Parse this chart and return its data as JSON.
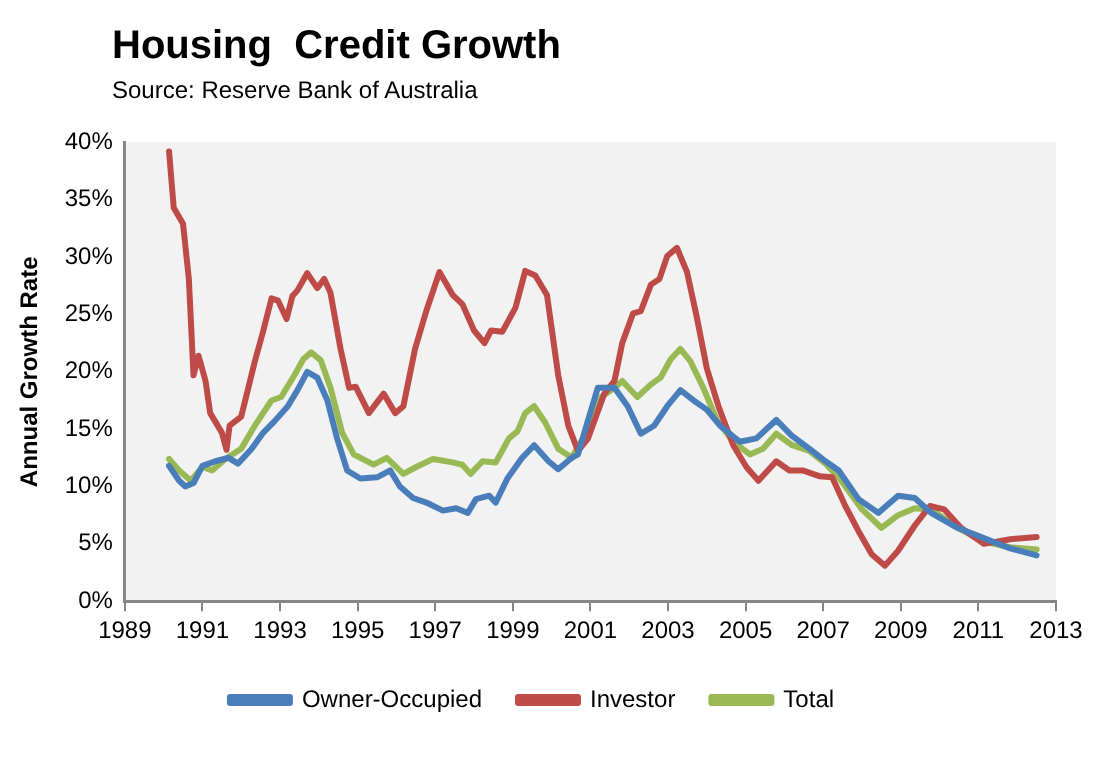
{
  "chart_data": {
    "type": "line",
    "title": "Housing  Credit Growth",
    "annotations": [
      "Source: Reserve Bank of Australia"
    ],
    "ylabel": "Annual Growth Rate",
    "xlim": [
      1989,
      2013
    ],
    "xticks": [
      1989,
      1991,
      1993,
      1995,
      1997,
      1999,
      2001,
      2003,
      2005,
      2007,
      2009,
      2011,
      2013
    ],
    "ylim": [
      0,
      40
    ],
    "yticks": [
      {
        "value": 0,
        "label": "0%"
      },
      {
        "value": 5,
        "label": "5%"
      },
      {
        "value": 10,
        "label": "10%"
      },
      {
        "value": 15,
        "label": "15%"
      },
      {
        "value": 20,
        "label": "20%"
      },
      {
        "value": 25,
        "label": "25%"
      },
      {
        "value": 30,
        "label": "30%"
      },
      {
        "value": 35,
        "label": "35%"
      },
      {
        "value": 40,
        "label": "40%"
      }
    ],
    "grid": false,
    "legend": "bottom",
    "marker": "none",
    "line_style": "solid",
    "series": [
      {
        "name": "Owner-Occupied",
        "color": "#4a7ebb",
        "x": [
          1990.14,
          1990.4,
          1990.56,
          1990.77,
          1991.0,
          1991.33,
          1991.67,
          1991.92,
          1992.27,
          1992.57,
          1992.86,
          1993.2,
          1993.45,
          1993.7,
          1993.96,
          1994.22,
          1994.47,
          1994.73,
          1995.07,
          1995.5,
          1995.84,
          1996.09,
          1996.43,
          1996.77,
          1997.2,
          1997.54,
          1997.84,
          1998.05,
          1998.39,
          1998.56,
          1998.86,
          1999.24,
          1999.55,
          1999.92,
          2000.17,
          2000.52,
          2000.68,
          2000.94,
          2001.19,
          2001.62,
          2001.96,
          2002.3,
          2002.64,
          2002.98,
          2003.32,
          2003.66,
          2004.0,
          2004.34,
          2004.85,
          2005.28,
          2005.79,
          2006.2,
          2006.64,
          2007.06,
          2007.4,
          2007.91,
          2008.42,
          2008.93,
          2009.36,
          2009.78,
          2010.46,
          2011.14,
          2011.82,
          2012.5
        ],
        "values": [
          11.8,
          10.5,
          10.0,
          10.3,
          11.8,
          12.2,
          12.5,
          12.0,
          13.3,
          14.7,
          15.7,
          17.0,
          18.4,
          20.0,
          19.5,
          17.5,
          14.2,
          11.4,
          10.7,
          10.8,
          11.4,
          10.0,
          9.0,
          8.6,
          7.9,
          8.1,
          7.7,
          8.9,
          9.2,
          8.6,
          10.7,
          12.5,
          13.6,
          12.2,
          11.5,
          12.5,
          12.8,
          15.8,
          18.6,
          18.6,
          17.0,
          14.6,
          15.3,
          17.0,
          18.4,
          17.5,
          16.7,
          15.3,
          13.9,
          14.2,
          15.8,
          14.4,
          13.3,
          12.2,
          11.4,
          8.9,
          7.7,
          9.2,
          9.0,
          7.7,
          6.4,
          5.5,
          4.6,
          4.0
        ]
      },
      {
        "name": "Investor",
        "color": "#be4b48",
        "x": [
          1990.14,
          1990.26,
          1990.5,
          1990.65,
          1990.77,
          1990.9,
          1991.08,
          1991.2,
          1991.5,
          1991.62,
          1991.7,
          1992.0,
          1992.35,
          1992.57,
          1992.78,
          1992.95,
          1993.17,
          1993.32,
          1993.45,
          1993.7,
          1993.96,
          1994.14,
          1994.3,
          1994.56,
          1994.78,
          1994.95,
          1995.29,
          1995.67,
          1995.97,
          1996.18,
          1996.48,
          1996.77,
          1997.11,
          1997.45,
          1997.7,
          1998.0,
          1998.27,
          1998.44,
          1998.73,
          1999.07,
          1999.32,
          1999.58,
          1999.88,
          2000.17,
          2000.43,
          2000.68,
          2000.94,
          2001.36,
          2001.62,
          2001.82,
          2002.1,
          2002.3,
          2002.56,
          2002.78,
          2002.98,
          2003.23,
          2003.49,
          2003.74,
          2004.0,
          2004.3,
          2004.68,
          2005.02,
          2005.33,
          2005.79,
          2006.13,
          2006.47,
          2006.9,
          2007.23,
          2007.57,
          2007.91,
          2008.25,
          2008.59,
          2008.93,
          2009.36,
          2009.75,
          2010.12,
          2010.55,
          2011.14,
          2011.82,
          2012.5
        ],
        "values": [
          39.2,
          34.3,
          32.9,
          28.1,
          19.7,
          21.4,
          19.2,
          16.4,
          14.7,
          13.2,
          15.3,
          16.1,
          20.9,
          23.6,
          26.4,
          26.2,
          24.6,
          26.6,
          27.1,
          28.6,
          27.3,
          28.1,
          26.9,
          22.0,
          18.6,
          18.7,
          16.4,
          18.1,
          16.4,
          17.0,
          22.0,
          25.3,
          28.7,
          26.7,
          25.9,
          23.6,
          22.5,
          23.6,
          23.5,
          25.6,
          28.8,
          28.4,
          26.7,
          19.7,
          15.3,
          13.1,
          14.2,
          18.1,
          19.2,
          22.5,
          25.1,
          25.3,
          27.6,
          28.1,
          30.1,
          30.8,
          28.7,
          24.8,
          20.3,
          17.0,
          13.6,
          11.7,
          10.5,
          12.2,
          11.4,
          11.4,
          10.9,
          10.8,
          8.3,
          6.1,
          4.1,
          3.1,
          4.4,
          6.6,
          8.3,
          8.0,
          6.4,
          5.0,
          5.4,
          5.6
        ]
      },
      {
        "name": "Total",
        "color": "#98b954",
        "x": [
          1990.14,
          1990.4,
          1990.7,
          1991.0,
          1991.25,
          1991.59,
          1992.0,
          1992.35,
          1992.78,
          1993.03,
          1993.37,
          1993.6,
          1993.8,
          1994.05,
          1994.3,
          1994.6,
          1994.9,
          1995.41,
          1995.75,
          1996.18,
          1996.51,
          1996.94,
          1997.45,
          1997.7,
          1997.91,
          1998.22,
          1998.56,
          1998.9,
          1999.12,
          1999.32,
          1999.55,
          1999.83,
          2000.17,
          2000.52,
          2000.94,
          2001.28,
          2001.62,
          2001.82,
          2002.21,
          2002.56,
          2002.81,
          2003.07,
          2003.32,
          2003.58,
          2003.91,
          2004.26,
          2004.68,
          2005.11,
          2005.45,
          2005.79,
          2006.2,
          2006.64,
          2007.06,
          2007.4,
          2008.0,
          2008.5,
          2008.93,
          2009.36,
          2009.78,
          2010.46,
          2011.14,
          2011.82,
          2012.5
        ],
        "values": [
          12.4,
          11.4,
          10.5,
          11.7,
          11.4,
          12.4,
          13.3,
          15.3,
          17.5,
          17.8,
          19.7,
          21.1,
          21.7,
          21.0,
          18.6,
          14.7,
          12.8,
          11.9,
          12.5,
          11.1,
          11.7,
          12.4,
          12.1,
          11.9,
          11.1,
          12.2,
          12.1,
          14.2,
          14.8,
          16.4,
          17.0,
          15.6,
          13.3,
          12.5,
          15.0,
          17.8,
          18.6,
          19.2,
          17.8,
          18.9,
          19.5,
          21.1,
          22.0,
          20.9,
          18.6,
          15.8,
          13.9,
          12.8,
          13.3,
          14.6,
          13.6,
          13.1,
          12.0,
          10.8,
          8.0,
          6.4,
          7.5,
          8.1,
          8.0,
          6.4,
          5.2,
          4.7,
          4.5
        ]
      }
    ]
  }
}
